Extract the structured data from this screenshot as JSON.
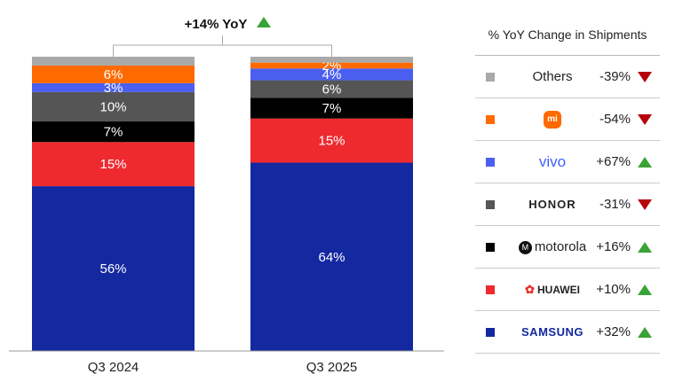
{
  "chart_data": {
    "type": "bar",
    "stacked": true,
    "categories": [
      "Q3 2024",
      "Q3 2025"
    ],
    "series": [
      {
        "name": "SAMSUNG",
        "color": "#1428a0",
        "values": [
          56,
          64
        ],
        "labels": [
          "56%",
          "64%"
        ]
      },
      {
        "name": "HUAWEI",
        "color": "#ee2a2f",
        "values": [
          15,
          15
        ],
        "labels": [
          "15%",
          "15%"
        ]
      },
      {
        "name": "motorola",
        "color": "#000000",
        "values": [
          7,
          7
        ],
        "labels": [
          "7%",
          "7%"
        ]
      },
      {
        "name": "HONOR",
        "color": "#555555",
        "values": [
          10,
          6
        ],
        "labels": [
          "10%",
          "6%"
        ]
      },
      {
        "name": "vivo",
        "color": "#4a5ff0",
        "values": [
          3,
          4
        ],
        "labels": [
          "3%",
          "4%"
        ]
      },
      {
        "name": "Xiaomi",
        "color": "#ff6a00",
        "values": [
          6,
          2
        ],
        "labels": [
          "6%",
          "2%"
        ]
      },
      {
        "name": "Others",
        "color": "#a9a9a9",
        "values": [
          3,
          2
        ],
        "labels": [
          "",
          ""
        ]
      }
    ],
    "annotation": "+14% YoY",
    "annotation_trend": "up",
    "ylim": [
      0,
      100
    ],
    "grid": false
  },
  "legend": {
    "title": "% YoY Change in Shipments",
    "rows": [
      {
        "brand": "Others",
        "change": "-39%",
        "trend": "down",
        "color": "#a9a9a9"
      },
      {
        "brand": "mi",
        "change": "-54%",
        "trend": "down",
        "color": "#ff6a00"
      },
      {
        "brand": "vivo",
        "change": "+67%",
        "trend": "up",
        "color": "#4a5ff0"
      },
      {
        "brand": "HONOR",
        "change": "-31%",
        "trend": "down",
        "color": "#555555"
      },
      {
        "brand": "motorola",
        "change": "+16%",
        "trend": "up",
        "color": "#000000"
      },
      {
        "brand": "HUAWEI",
        "change": "+10%",
        "trend": "up",
        "color": "#ee2a2f"
      },
      {
        "brand": "SAMSUNG",
        "change": "+32%",
        "trend": "up",
        "color": "#1428a0"
      }
    ]
  },
  "colors": {
    "up": "#3aa335",
    "down": "#b5000b"
  }
}
